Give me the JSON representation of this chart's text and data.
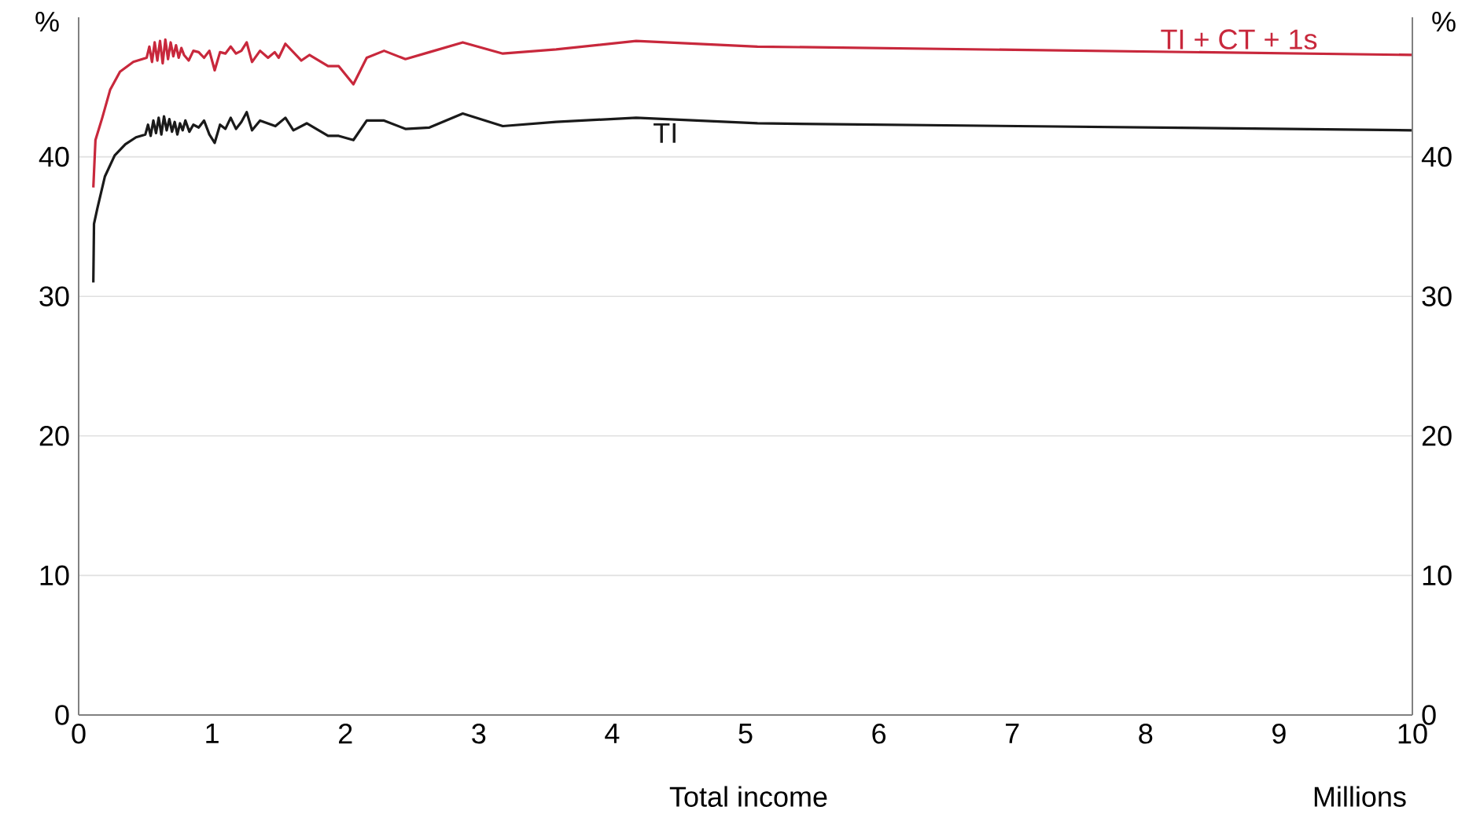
{
  "chart_data": {
    "type": "line",
    "xlabel": "Total income",
    "ylabel": "%",
    "y2label": "%",
    "annotations": [
      "Millions"
    ],
    "xlim": [
      0,
      10
    ],
    "xticks": [
      0,
      1,
      2,
      3,
      4,
      5,
      6,
      7,
      8,
      9,
      10
    ],
    "ylim": [
      0,
      50
    ],
    "yticks": [
      0,
      10,
      20,
      30,
      40
    ],
    "y2lim": [
      0,
      50
    ],
    "y2ticks": [
      0,
      10,
      20,
      30,
      40
    ],
    "grid": "y",
    "legend": false,
    "marker": "none",
    "line_style": "solid",
    "series": [
      {
        "name": "TI + CT + 1s",
        "color": "#c8283c",
        "x": [
          0.11,
          0.126,
          0.177,
          0.236,
          0.31,
          0.41,
          0.51,
          0.53,
          0.55,
          0.57,
          0.59,
          0.61,
          0.63,
          0.65,
          0.67,
          0.69,
          0.71,
          0.73,
          0.75,
          0.77,
          0.79,
          0.825,
          0.86,
          0.9,
          0.94,
          0.98,
          1.02,
          1.06,
          1.1,
          1.14,
          1.18,
          1.22,
          1.26,
          1.3,
          1.36,
          1.42,
          1.47,
          1.5,
          1.55,
          1.67,
          1.73,
          1.87,
          1.95,
          2.06,
          2.16,
          2.29,
          2.45,
          2.63,
          2.88,
          3.18,
          3.58,
          4.18,
          5.09,
          10
        ],
        "values": [
          37.8,
          41.2,
          42.8,
          44.8,
          46.1,
          46.8,
          47.1,
          47.9,
          46.8,
          48.2,
          46.9,
          48.3,
          46.7,
          48.4,
          47.0,
          48.2,
          47.2,
          48.0,
          47.1,
          47.8,
          47.3,
          46.9,
          47.6,
          47.5,
          47.1,
          47.6,
          46.2,
          47.5,
          47.4,
          47.9,
          47.4,
          47.6,
          48.2,
          46.8,
          47.6,
          47.1,
          47.5,
          47.1,
          48.1,
          46.9,
          47.3,
          46.5,
          46.5,
          45.2,
          47.1,
          47.6,
          47.0,
          47.5,
          48.2,
          47.4,
          47.7,
          48.3,
          47.9,
          47.3
        ]
      },
      {
        "name": "TI",
        "color": "#1a1a1a",
        "x": [
          0.11,
          0.115,
          0.14,
          0.197,
          0.27,
          0.35,
          0.43,
          0.5,
          0.52,
          0.54,
          0.56,
          0.58,
          0.6,
          0.62,
          0.64,
          0.66,
          0.68,
          0.7,
          0.72,
          0.74,
          0.76,
          0.78,
          0.8,
          0.83,
          0.86,
          0.9,
          0.94,
          0.98,
          1.02,
          1.06,
          1.1,
          1.14,
          1.18,
          1.22,
          1.26,
          1.3,
          1.36,
          1.475,
          1.55,
          1.61,
          1.71,
          1.87,
          1.95,
          2.06,
          2.16,
          2.29,
          2.45,
          2.63,
          2.88,
          3.18,
          3.58,
          4.18,
          5.09,
          10
        ],
        "values": [
          31.0,
          35.2,
          36.3,
          38.6,
          40.1,
          40.9,
          41.4,
          41.6,
          42.3,
          41.5,
          42.6,
          41.7,
          42.8,
          41.6,
          42.9,
          41.9,
          42.7,
          41.8,
          42.5,
          41.6,
          42.4,
          41.9,
          42.6,
          41.8,
          42.3,
          42.1,
          42.6,
          41.6,
          41.0,
          42.3,
          42.0,
          42.8,
          42.0,
          42.5,
          43.2,
          41.9,
          42.6,
          42.2,
          42.8,
          41.9,
          42.4,
          41.5,
          41.5,
          41.2,
          42.6,
          42.6,
          42.0,
          42.1,
          43.1,
          42.2,
          42.5,
          42.8,
          42.4,
          41.9
        ]
      }
    ]
  }
}
